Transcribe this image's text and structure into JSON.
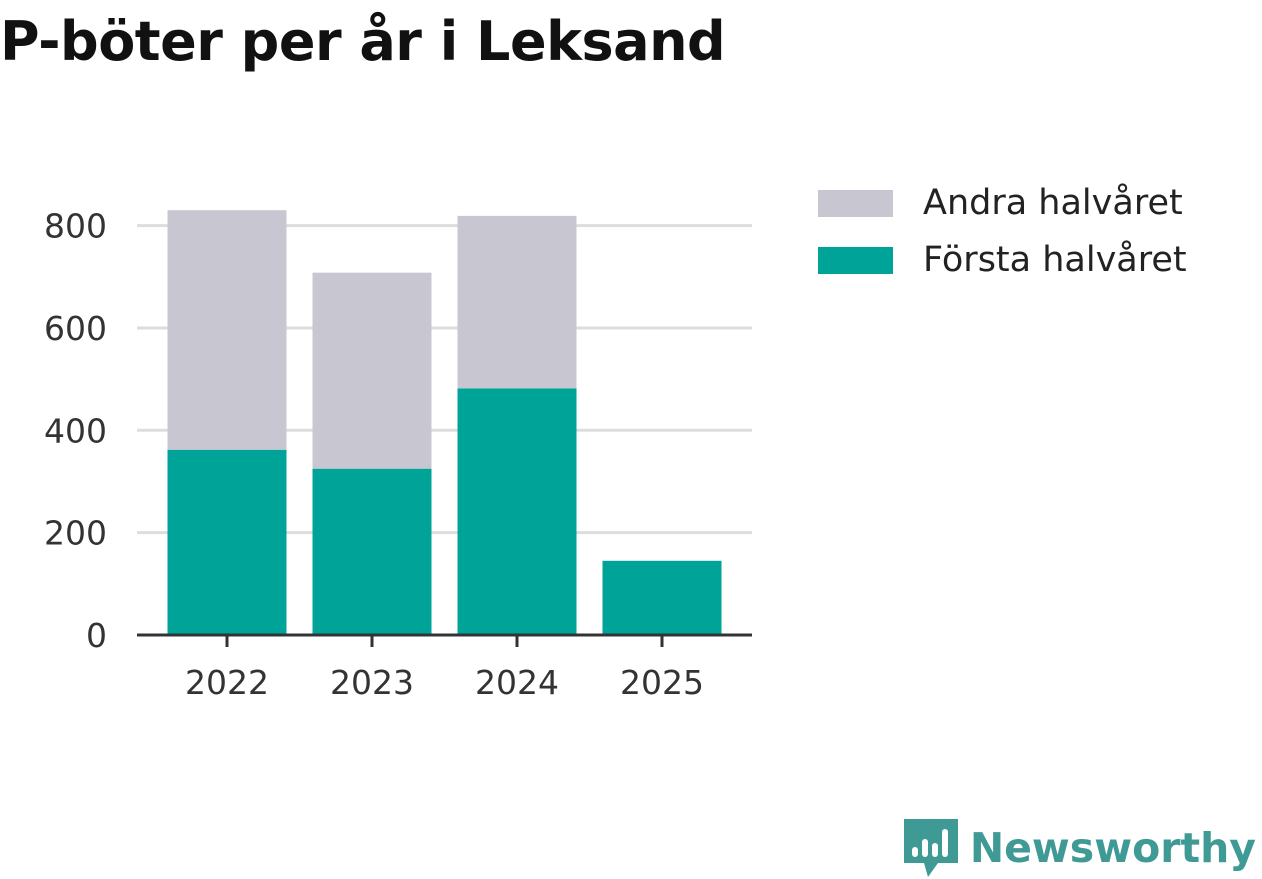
{
  "chart_data": {
    "type": "bar",
    "stacked": true,
    "title": "P-böter per år i Leksand",
    "categories": [
      "2022",
      "2023",
      "2024",
      "2025"
    ],
    "series": [
      {
        "name": "Första halvåret",
        "color": "#00a398",
        "values": [
          362,
          325,
          482,
          145
        ]
      },
      {
        "name": "Andra halvåret",
        "color": "#c8c7d1",
        "values": [
          468,
          383,
          337,
          0
        ]
      }
    ],
    "xlabel": "",
    "ylabel": "",
    "ylim": [
      0,
      830
    ],
    "yticks": [
      0,
      200,
      400,
      600,
      800
    ],
    "grid": true,
    "legend_position": "top-right"
  },
  "legend": [
    {
      "label": "Andra halvåret",
      "color": "#c8c7d1"
    },
    {
      "label": "Första halvåret",
      "color": "#00a398"
    }
  ],
  "brand": {
    "name": "Newsworthy",
    "icon": "bar-chart-speech-bubble-icon",
    "color": "#3f9a96"
  }
}
